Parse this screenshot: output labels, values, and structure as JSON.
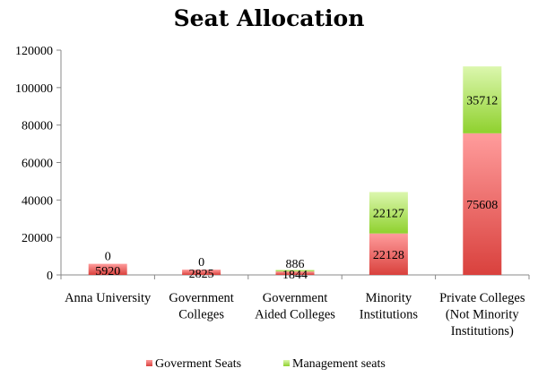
{
  "chart_data": {
    "type": "bar",
    "stacked": true,
    "title": "Seat Allocation",
    "xlabel": "",
    "ylabel": "",
    "ylim": [
      0,
      120000
    ],
    "yticks": [
      0,
      20000,
      40000,
      60000,
      80000,
      100000,
      120000
    ],
    "categories": [
      [
        "Anna University"
      ],
      [
        "Government",
        "Colleges"
      ],
      [
        "Government",
        "Aided Colleges"
      ],
      [
        "Minority",
        "Institutions"
      ],
      [
        "Private Colleges",
        "(Not Minority",
        "Institutions)"
      ]
    ],
    "series": [
      {
        "name": "Goverment Seats",
        "values": [
          5920,
          2825,
          1844,
          22128,
          75608
        ],
        "color": "#e0443f",
        "color_light": "#ff9a9a"
      },
      {
        "name": "Management seats",
        "values": [
          0,
          0,
          886,
          22127,
          35712
        ],
        "color": "#8fd12e",
        "color_light": "#d8f5a8"
      }
    ],
    "legend_position": "bottom",
    "grid": false
  }
}
